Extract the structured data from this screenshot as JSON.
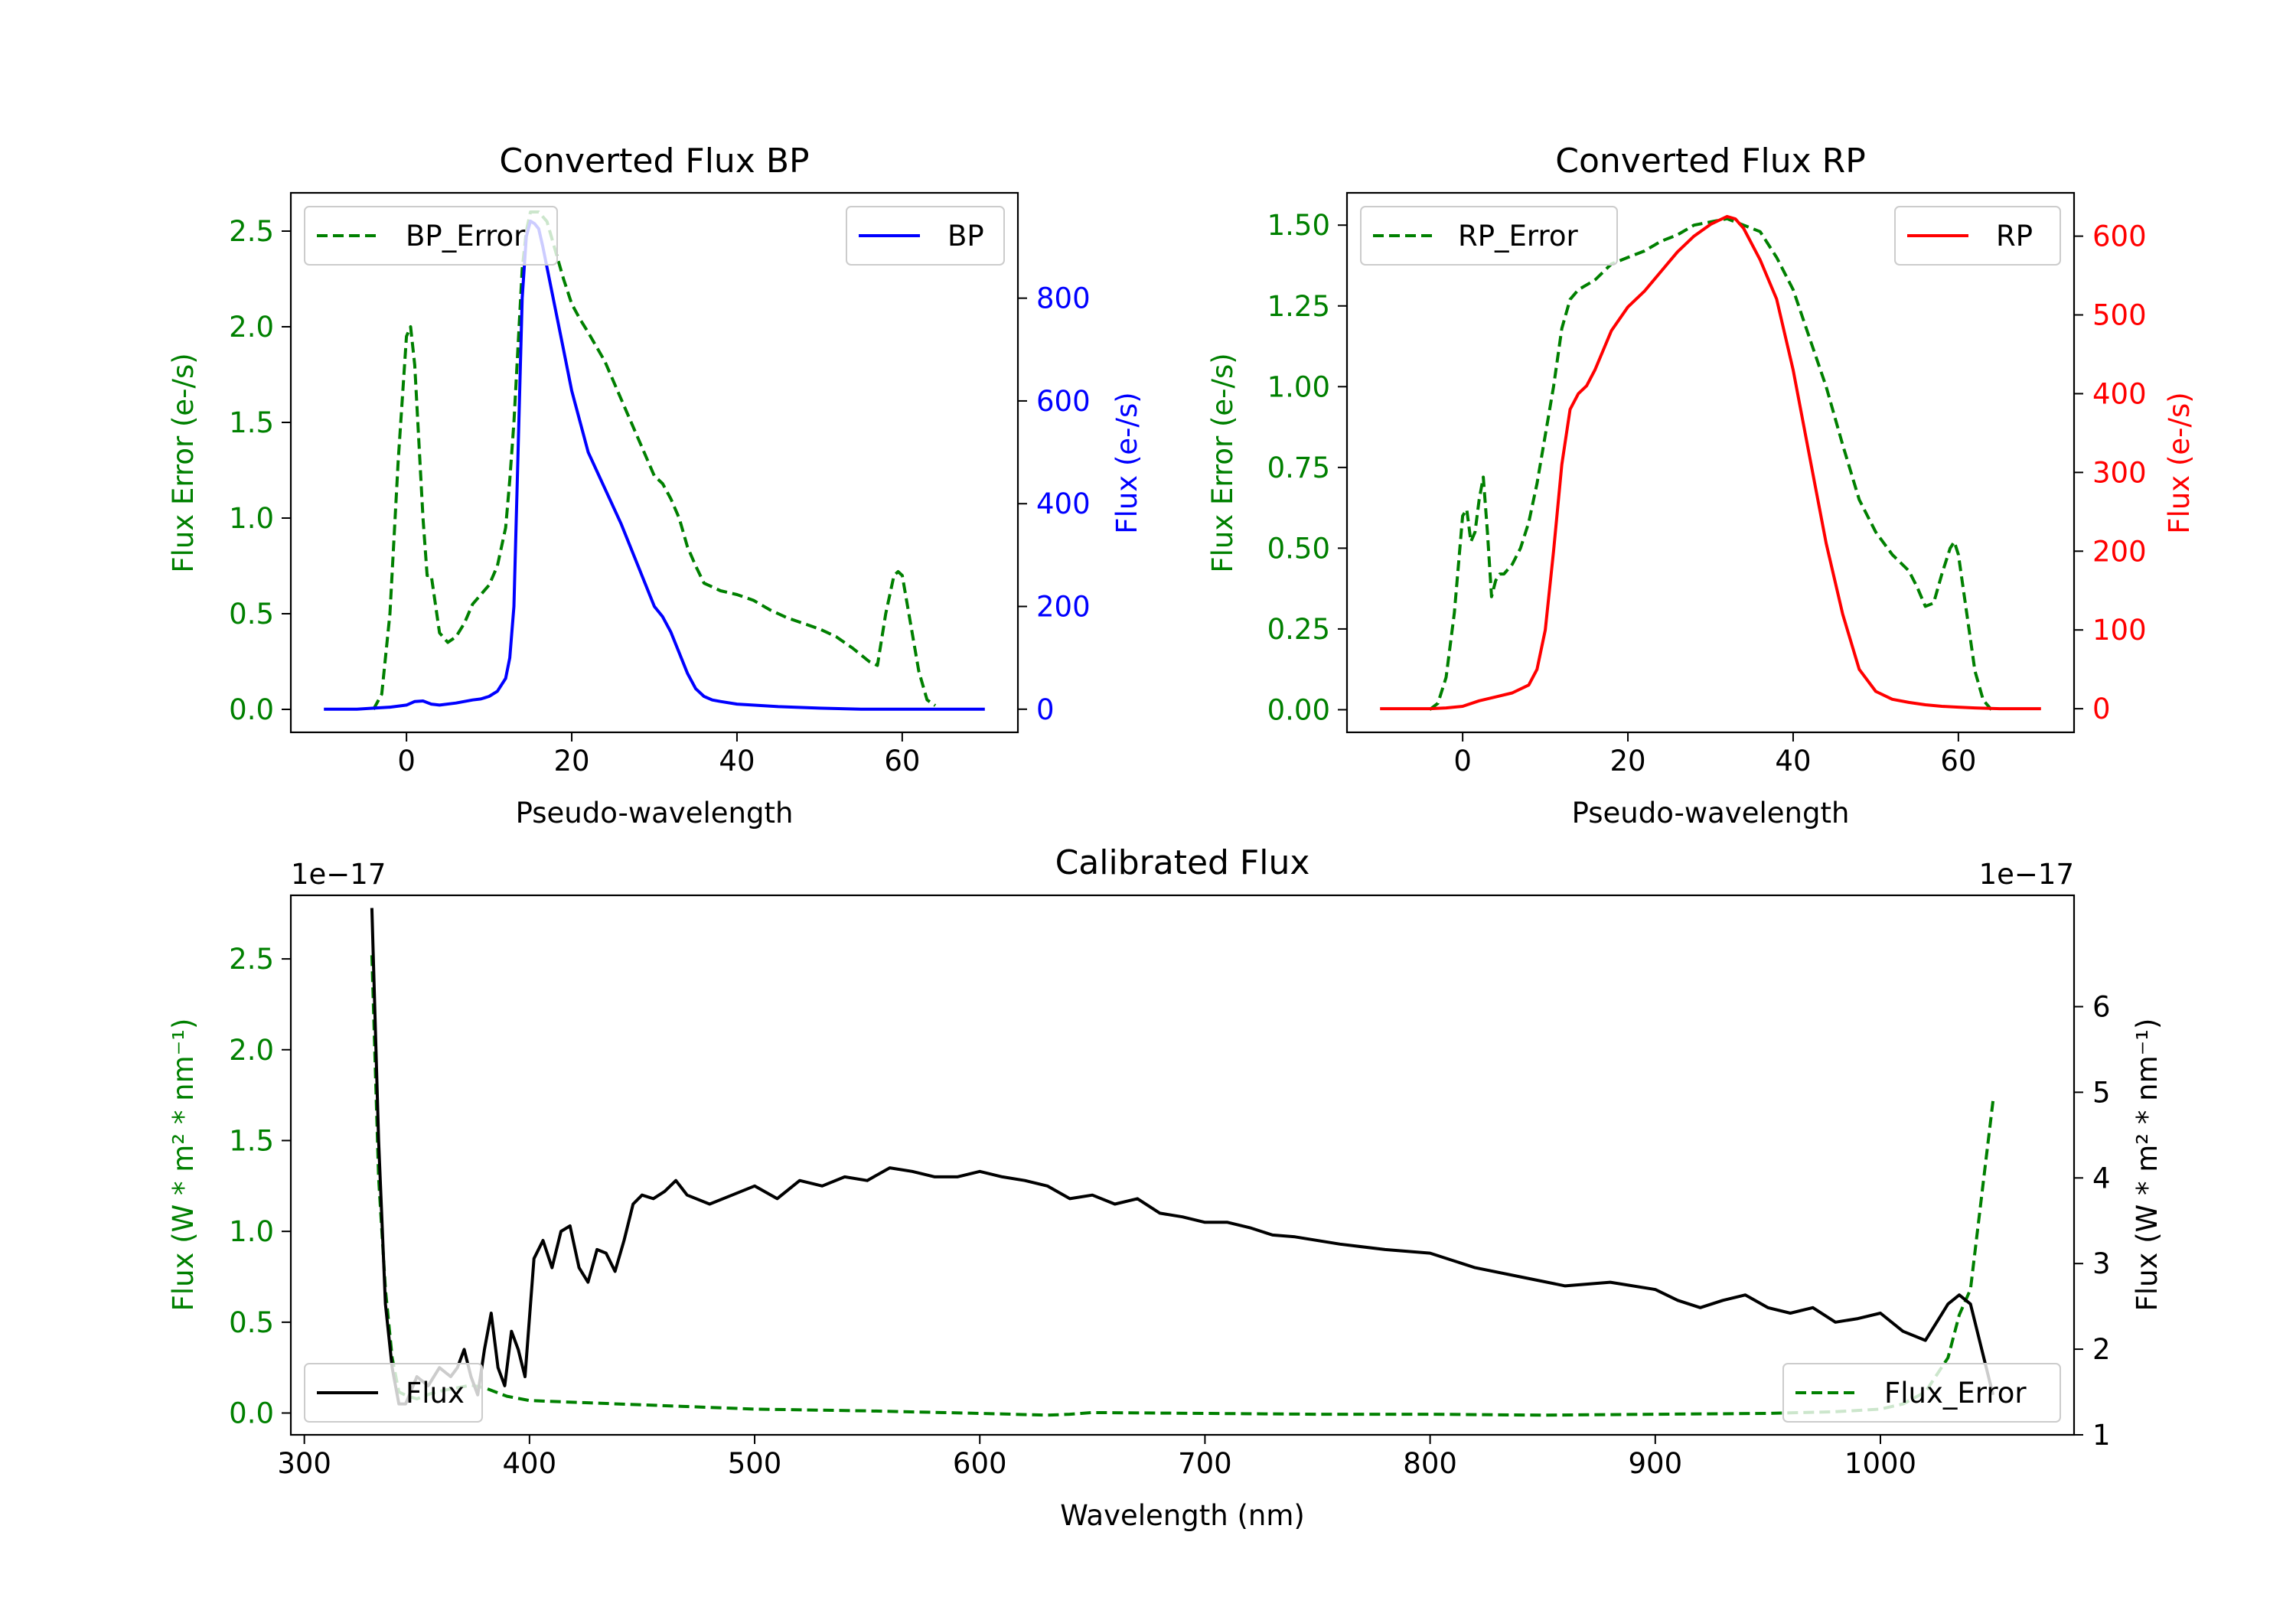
{
  "colors": {
    "bp_error": "#008000",
    "bp": "#0000ff",
    "rp_error": "#008000",
    "rp": "#ff0000",
    "flux": "#000000",
    "flux_error": "#008000",
    "axis": "#000000"
  },
  "chart_data": [
    {
      "id": "bp",
      "type": "line",
      "title": "Converted Flux BP",
      "xlabel": "Pseudo-wavelength",
      "ylabel_left": "Flux Error (e-/s)",
      "ylabel_right": "Flux (e-/s)",
      "xlim": [
        -14,
        74
      ],
      "ylim_left": [
        -0.12,
        2.7
      ],
      "ylim_right": [
        -45,
        1005
      ],
      "xticks": [
        0,
        20,
        40,
        60
      ],
      "xtick_labels": [
        "0",
        "20",
        "40",
        "60"
      ],
      "yticks_left": [
        0.0,
        0.5,
        1.0,
        1.5,
        2.0,
        2.5
      ],
      "ytick_labels_left": [
        "0.0",
        "0.5",
        "1.0",
        "1.5",
        "2.0",
        "2.5"
      ],
      "yticks_right": [
        0,
        200,
        400,
        600,
        800
      ],
      "ytick_labels_right": [
        "0",
        "200",
        "400",
        "600",
        "800"
      ],
      "legend_left": {
        "label": "BP_Error",
        "placement": "upper-left"
      },
      "legend_right": {
        "label": "BP",
        "placement": "upper-right"
      },
      "series": [
        {
          "name": "BP_Error",
          "axis": "left",
          "style": "dashed",
          "color_key": "bp_error",
          "x": [
            -4,
            -3,
            -2,
            -1,
            0,
            0.5,
            1,
            2,
            2.5,
            3,
            3.5,
            4,
            5,
            6,
            7,
            8,
            9,
            10,
            11,
            11.5,
            12,
            12.5,
            13,
            13.5,
            14,
            14.5,
            15,
            16,
            17,
            18,
            19,
            20,
            21,
            22,
            24,
            26,
            28,
            30,
            31,
            32,
            33,
            34,
            35,
            36,
            38,
            40,
            42,
            44,
            46,
            48,
            50,
            52,
            54,
            56,
            57,
            58,
            59,
            59.5,
            60,
            61,
            62,
            63,
            64
          ],
          "y": [
            0.0,
            0.08,
            0.5,
            1.3,
            1.95,
            2.0,
            1.8,
            1.0,
            0.7,
            0.7,
            0.55,
            0.4,
            0.35,
            0.38,
            0.45,
            0.55,
            0.6,
            0.65,
            0.75,
            0.85,
            0.95,
            1.2,
            1.5,
            1.9,
            2.3,
            2.5,
            2.6,
            2.6,
            2.55,
            2.4,
            2.25,
            2.12,
            2.04,
            1.97,
            1.82,
            1.62,
            1.42,
            1.22,
            1.18,
            1.1,
            1.0,
            0.85,
            0.75,
            0.66,
            0.62,
            0.6,
            0.57,
            0.52,
            0.48,
            0.45,
            0.42,
            0.38,
            0.32,
            0.25,
            0.23,
            0.5,
            0.7,
            0.72,
            0.7,
            0.45,
            0.2,
            0.05,
            0.02
          ]
        },
        {
          "name": "BP",
          "axis": "right",
          "style": "solid",
          "color_key": "bp",
          "x": [
            -10,
            -8,
            -6,
            -4,
            -2,
            0,
            1,
            2,
            3,
            4,
            6,
            7,
            8,
            9,
            10,
            11,
            12,
            12.5,
            13,
            13.5,
            14,
            14.5,
            15,
            15.5,
            16,
            16.5,
            17,
            18,
            19,
            20,
            21,
            22,
            24,
            26,
            28,
            30,
            31,
            32,
            33,
            34,
            35,
            36,
            37,
            38,
            40,
            45,
            50,
            55,
            60,
            65,
            70
          ],
          "y": [
            0,
            0,
            0,
            2,
            4,
            8,
            15,
            16,
            10,
            8,
            12,
            15,
            18,
            20,
            25,
            35,
            60,
            100,
            200,
            500,
            800,
            920,
            950,
            945,
            935,
            900,
            860,
            780,
            700,
            620,
            560,
            500,
            430,
            360,
            280,
            200,
            180,
            150,
            110,
            70,
            40,
            25,
            18,
            15,
            10,
            5,
            2,
            0,
            0,
            0,
            0
          ]
        }
      ]
    },
    {
      "id": "rp",
      "type": "line",
      "title": "Converted Flux RP",
      "xlabel": "Pseudo-wavelength",
      "ylabel_left": "Flux Error (e-/s)",
      "ylabel_right": "Flux (e-/s)",
      "xlim": [
        -14,
        74
      ],
      "ylim_left": [
        -0.07,
        1.6
      ],
      "ylim_right": [
        -30,
        655
      ],
      "xticks": [
        0,
        20,
        40,
        60
      ],
      "xtick_labels": [
        "0",
        "20",
        "40",
        "60"
      ],
      "yticks_left": [
        0.0,
        0.25,
        0.5,
        0.75,
        1.0,
        1.25,
        1.5
      ],
      "ytick_labels_left": [
        "0.00",
        "0.25",
        "0.50",
        "0.75",
        "1.00",
        "1.25",
        "1.50"
      ],
      "yticks_right": [
        0,
        100,
        200,
        300,
        400,
        500,
        600
      ],
      "ytick_labels_right": [
        "0",
        "100",
        "200",
        "300",
        "400",
        "500",
        "600"
      ],
      "legend_left": {
        "label": "RP_Error",
        "placement": "upper-left"
      },
      "legend_right": {
        "label": "RP",
        "placement": "upper-right"
      },
      "series": [
        {
          "name": "RP_Error",
          "axis": "left",
          "style": "dashed",
          "color_key": "rp_error",
          "x": [
            -4,
            -3,
            -2,
            -1,
            0,
            0.5,
            1,
            1.5,
            2,
            2.5,
            3,
            3.5,
            4,
            4.5,
            5,
            6,
            7,
            8,
            9,
            10,
            11,
            12,
            13,
            14,
            16,
            18,
            20,
            22,
            24,
            26,
            28,
            30,
            32,
            34,
            36,
            38,
            40,
            42,
            44,
            46,
            48,
            50,
            52,
            54,
            55,
            56,
            57,
            58,
            59,
            59.5,
            60,
            61,
            62,
            63,
            64
          ],
          "y": [
            0.0,
            0.02,
            0.1,
            0.3,
            0.6,
            0.62,
            0.52,
            0.55,
            0.65,
            0.72,
            0.55,
            0.35,
            0.4,
            0.42,
            0.42,
            0.45,
            0.5,
            0.58,
            0.7,
            0.85,
            1.0,
            1.18,
            1.27,
            1.3,
            1.33,
            1.38,
            1.4,
            1.42,
            1.45,
            1.47,
            1.5,
            1.51,
            1.52,
            1.5,
            1.48,
            1.4,
            1.3,
            1.15,
            1.0,
            0.82,
            0.65,
            0.55,
            0.48,
            0.43,
            0.38,
            0.32,
            0.33,
            0.42,
            0.5,
            0.52,
            0.48,
            0.3,
            0.12,
            0.03,
            0.0
          ]
        },
        {
          "name": "RP",
          "axis": "right",
          "style": "solid",
          "color_key": "rp",
          "x": [
            -10,
            -8,
            -6,
            -4,
            -2,
            0,
            2,
            4,
            6,
            8,
            9,
            10,
            11,
            12,
            13,
            14,
            15,
            16,
            18,
            20,
            22,
            24,
            26,
            28,
            30,
            31,
            32,
            33,
            34,
            35,
            36,
            38,
            40,
            42,
            44,
            46,
            48,
            50,
            52,
            54,
            56,
            58,
            60,
            62,
            65,
            70
          ],
          "y": [
            0,
            0,
            0,
            0,
            1,
            3,
            10,
            15,
            20,
            30,
            50,
            100,
            200,
            310,
            380,
            400,
            410,
            430,
            480,
            510,
            530,
            555,
            580,
            600,
            615,
            620,
            625,
            622,
            610,
            590,
            570,
            520,
            430,
            320,
            210,
            120,
            50,
            22,
            12,
            8,
            5,
            3,
            2,
            1,
            0,
            0
          ]
        }
      ]
    },
    {
      "id": "calibrated",
      "type": "line",
      "title": "Calibrated Flux",
      "xlabel": "Wavelength (nm)",
      "ylabel_left": "Flux (W * m² * nm⁻¹)",
      "ylabel_right": "Flux (W * m² * nm⁻¹)",
      "offset_left": "1e−17",
      "offset_right": "1e−17",
      "xlim": [
        294,
        1086
      ],
      "ylim_left": [
        -0.12,
        2.85
      ],
      "ylim_right": [
        1.0,
        7.3
      ],
      "xticks": [
        300,
        400,
        500,
        600,
        700,
        800,
        900,
        1000
      ],
      "xtick_labels": [
        "300",
        "400",
        "500",
        "600",
        "700",
        "800",
        "900",
        "1000"
      ],
      "yticks_left": [
        0.0,
        0.5,
        1.0,
        1.5,
        2.0,
        2.5
      ],
      "ytick_labels_left": [
        "0.0",
        "0.5",
        "1.0",
        "1.5",
        "2.0",
        "2.5"
      ],
      "yticks_right": [
        1,
        2,
        3,
        4,
        5,
        6
      ],
      "ytick_labels_right": [
        "1",
        "2",
        "3",
        "4",
        "5",
        "6"
      ],
      "legend_left": {
        "label": "Flux",
        "placement": "lower-left"
      },
      "legend_right": {
        "label": "Flux_Error",
        "placement": "lower-right"
      },
      "series": [
        {
          "name": "Flux",
          "axis": "left",
          "style": "solid",
          "color_key": "flux",
          "x": [
            330,
            333,
            336,
            339,
            342,
            345,
            350,
            355,
            360,
            365,
            368,
            371,
            374,
            377,
            380,
            383,
            386,
            389,
            392,
            395,
            398,
            402,
            406,
            410,
            414,
            418,
            422,
            426,
            430,
            434,
            438,
            442,
            446,
            450,
            455,
            460,
            465,
            470,
            480,
            490,
            500,
            510,
            520,
            530,
            540,
            550,
            560,
            570,
            580,
            590,
            600,
            610,
            620,
            630,
            640,
            650,
            660,
            670,
            680,
            690,
            700,
            710,
            720,
            730,
            740,
            760,
            780,
            800,
            820,
            840,
            860,
            880,
            900,
            910,
            920,
            930,
            940,
            950,
            960,
            970,
            980,
            990,
            1000,
            1010,
            1020,
            1030,
            1035,
            1040,
            1050
          ],
          "y": [
            2.78,
            1.5,
            0.6,
            0.25,
            0.05,
            0.05,
            0.2,
            0.15,
            0.25,
            0.2,
            0.25,
            0.35,
            0.2,
            0.1,
            0.35,
            0.55,
            0.25,
            0.15,
            0.45,
            0.35,
            0.2,
            0.85,
            0.95,
            0.8,
            1.0,
            1.03,
            0.8,
            0.72,
            0.9,
            0.88,
            0.78,
            0.95,
            1.15,
            1.2,
            1.18,
            1.22,
            1.28,
            1.2,
            1.15,
            1.2,
            1.25,
            1.18,
            1.28,
            1.25,
            1.3,
            1.28,
            1.35,
            1.33,
            1.3,
            1.3,
            1.33,
            1.3,
            1.28,
            1.25,
            1.18,
            1.2,
            1.15,
            1.18,
            1.1,
            1.08,
            1.05,
            1.05,
            1.02,
            0.98,
            0.97,
            0.93,
            0.9,
            0.88,
            0.8,
            0.75,
            0.7,
            0.72,
            0.68,
            0.62,
            0.58,
            0.62,
            0.65,
            0.58,
            0.55,
            0.58,
            0.5,
            0.52,
            0.55,
            0.45,
            0.4,
            0.6,
            0.65,
            0.6,
            0.1
          ]
        },
        {
          "name": "Flux_Error",
          "axis": "right",
          "style": "dashed",
          "color_key": "flux_error",
          "x": [
            330,
            333,
            336,
            339,
            342,
            346,
            350,
            356,
            362,
            368,
            374,
            380,
            390,
            400,
            420,
            450,
            500,
            550,
            600,
            630,
            640,
            650,
            700,
            750,
            800,
            850,
            900,
            950,
            980,
            1000,
            1010,
            1020,
            1030,
            1035,
            1040,
            1045,
            1050
          ],
          "y": [
            6.6,
            4.0,
            2.7,
            1.9,
            1.5,
            1.45,
            1.42,
            1.48,
            1.52,
            1.55,
            1.58,
            1.55,
            1.45,
            1.4,
            1.38,
            1.35,
            1.3,
            1.28,
            1.25,
            1.23,
            1.24,
            1.26,
            1.25,
            1.24,
            1.24,
            1.23,
            1.24,
            1.25,
            1.27,
            1.3,
            1.36,
            1.5,
            1.9,
            2.4,
            2.7,
            3.8,
            4.9
          ]
        }
      ]
    }
  ]
}
